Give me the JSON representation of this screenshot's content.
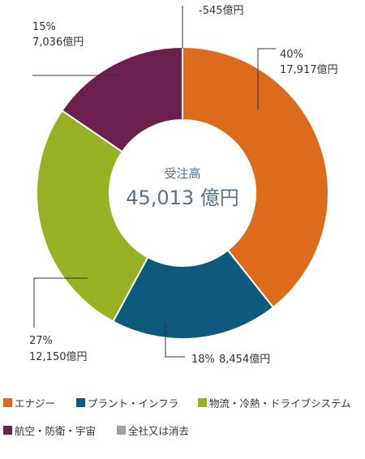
{
  "chart_data": {
    "type": "pie",
    "center": {
      "title": "受注高",
      "value": "45,013 億円"
    },
    "slices": [
      {
        "key": "energy",
        "category": "エナジー",
        "value": 17917,
        "percent_label": "40%",
        "value_label": "17,917億円",
        "color": "#dd6b1c"
      },
      {
        "key": "plant",
        "category": "プラント・インフラ",
        "value": 8454,
        "percent_label": "18%",
        "value_label": "8,454億円",
        "color": "#0d5a7c"
      },
      {
        "key": "logistics",
        "category": "物流・冷熱・ドライブシステム",
        "value": 12150,
        "percent_label": "27%",
        "value_label": "12,150億円",
        "color": "#97b224"
      },
      {
        "key": "aero",
        "category": "航空・防衛・宇宙",
        "value": 7036,
        "percent_label": "15%",
        "value_label": "7,036億円",
        "color": "#6d1f4d"
      },
      {
        "key": "other",
        "category": "全社又は消去",
        "value": -545,
        "percent_label": "",
        "value_label": "-545億円",
        "color": "#a0a0a0"
      }
    ]
  },
  "legend": [
    {
      "label": "エナジー",
      "color": "#dd6b1c"
    },
    {
      "label": "プラント・インフラ",
      "color": "#0d5a7c"
    },
    {
      "label": "物流・冷熱・ドライブシステム",
      "color": "#97b224"
    },
    {
      "label": "航空・防衛・宇宙",
      "color": "#6d1f4d"
    },
    {
      "label": "全社又は消去",
      "color": "#a0a0a0"
    }
  ]
}
